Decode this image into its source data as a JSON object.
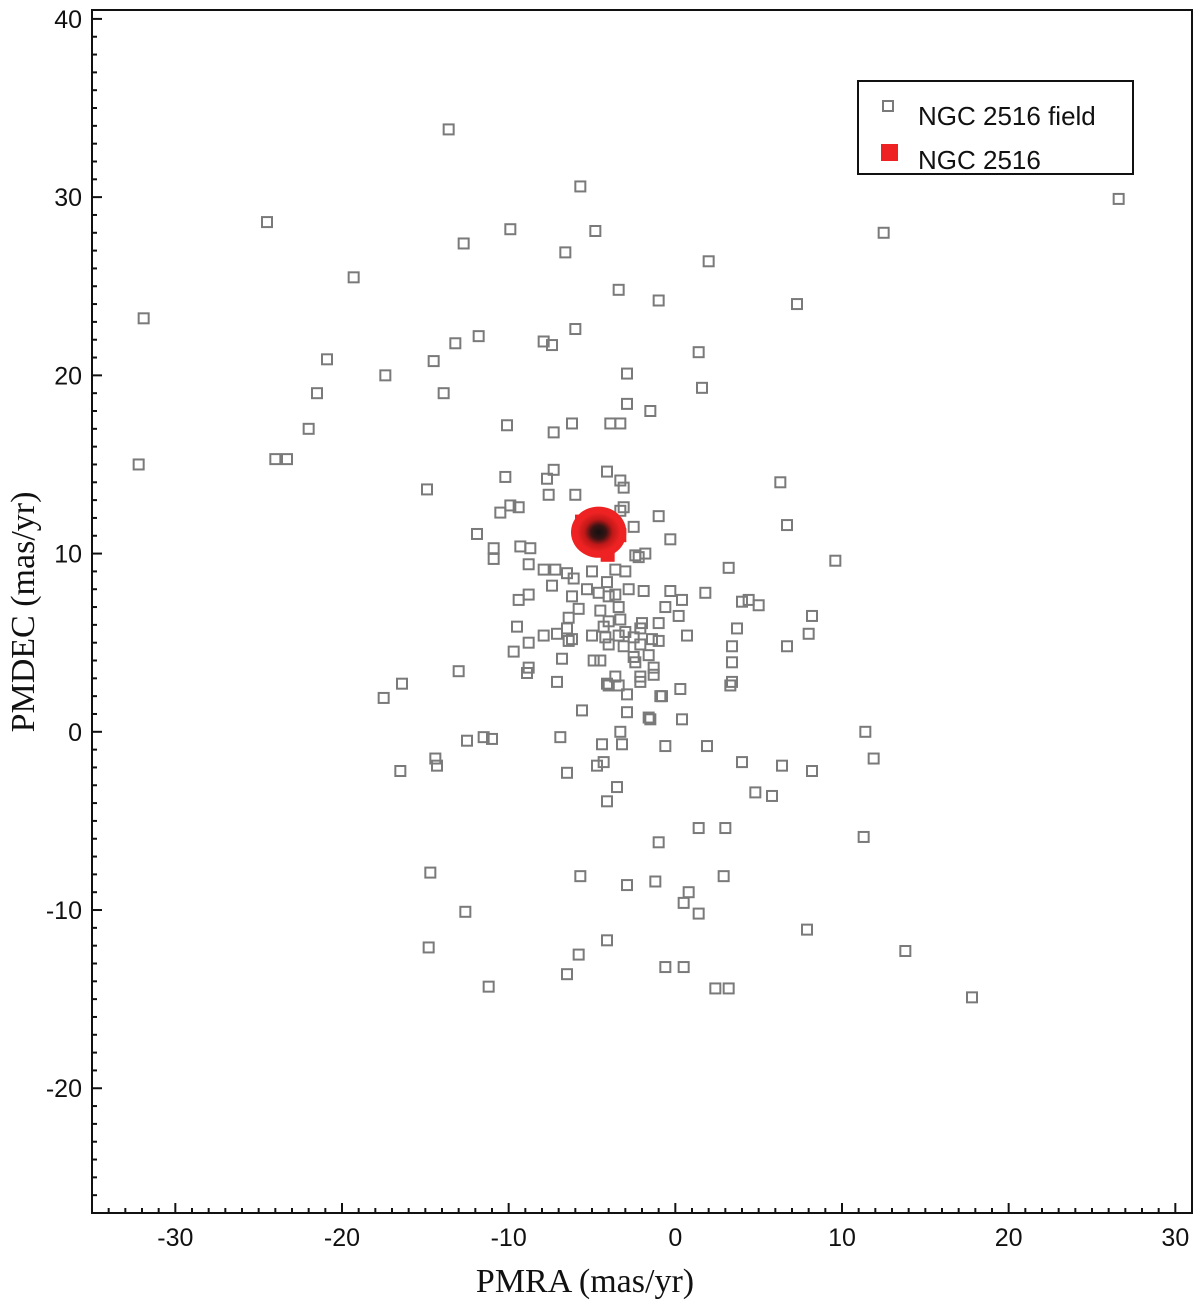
{
  "chart_data": {
    "type": "scatter",
    "xlabel": "PMRA (mas/yr)",
    "ylabel": "PMDEC (mas/yr)",
    "xlim": [
      -35,
      31
    ],
    "ylim": [
      -27,
      40.5
    ],
    "x_ticks": [
      -30,
      -20,
      -10,
      0,
      10,
      20,
      30
    ],
    "y_ticks": [
      -20,
      -10,
      0,
      10,
      20,
      30,
      40
    ],
    "x_tick_labels": [
      "-30",
      "-20",
      "-10",
      "0",
      "10",
      "20",
      "30"
    ],
    "y_tick_labels": [
      "-20",
      "-10",
      "0",
      "10",
      "20",
      "30",
      "40"
    ],
    "legend_placement": "top-right",
    "colors": {
      "field": "#7a7a7a",
      "cluster": "#ee2222",
      "cluster_core": "#1a1a1a"
    },
    "series": [
      {
        "name": "NGC 2516 field",
        "marker": "open-square",
        "points": [
          [
            -13.6,
            33.8
          ],
          [
            -5.7,
            30.6
          ],
          [
            -24.5,
            28.6
          ],
          [
            -9.9,
            28.2
          ],
          [
            -4.8,
            28.1
          ],
          [
            -12.7,
            27.4
          ],
          [
            -6.6,
            26.9
          ],
          [
            2.0,
            26.4
          ],
          [
            -3.4,
            24.8
          ],
          [
            -1.0,
            24.2
          ],
          [
            7.3,
            24.0
          ],
          [
            -19.3,
            25.5
          ],
          [
            -31.9,
            23.2
          ],
          [
            -6.0,
            22.6
          ],
          [
            -11.8,
            22.2
          ],
          [
            -13.2,
            21.8
          ],
          [
            -7.9,
            21.9
          ],
          [
            -7.4,
            21.7
          ],
          [
            1.4,
            21.3
          ],
          [
            -20.9,
            20.9
          ],
          [
            -14.5,
            20.8
          ],
          [
            -17.4,
            20.0
          ],
          [
            -2.9,
            20.1
          ],
          [
            -21.5,
            19.0
          ],
          [
            -13.9,
            19.0
          ],
          [
            1.6,
            19.3
          ],
          [
            -2.9,
            18.4
          ],
          [
            -1.5,
            18.0
          ],
          [
            -22.0,
            17.0
          ],
          [
            -10.1,
            17.2
          ],
          [
            -6.2,
            17.3
          ],
          [
            -3.9,
            17.3
          ],
          [
            -3.3,
            17.3
          ],
          [
            -7.3,
            16.8
          ],
          [
            -32.2,
            15.0
          ],
          [
            -24.0,
            15.3
          ],
          [
            -23.3,
            15.3
          ],
          [
            -10.2,
            14.3
          ],
          [
            -7.7,
            14.2
          ],
          [
            -7.3,
            14.7
          ],
          [
            -4.1,
            14.6
          ],
          [
            -3.3,
            14.1
          ],
          [
            -14.9,
            13.6
          ],
          [
            -7.6,
            13.3
          ],
          [
            -6.0,
            13.3
          ],
          [
            -3.1,
            13.7
          ],
          [
            6.3,
            14.0
          ],
          [
            -10.5,
            12.3
          ],
          [
            -9.4,
            12.6
          ],
          [
            -9.9,
            12.7
          ],
          [
            -3.1,
            12.6
          ],
          [
            -3.3,
            12.4
          ],
          [
            -1.0,
            12.1
          ],
          [
            -11.9,
            11.1
          ],
          [
            -2.5,
            11.5
          ],
          [
            6.7,
            11.6
          ],
          [
            -10.9,
            10.3
          ],
          [
            -9.3,
            10.4
          ],
          [
            -8.7,
            10.3
          ],
          [
            -0.3,
            10.8
          ],
          [
            -10.9,
            9.7
          ],
          [
            -2.4,
            9.9
          ],
          [
            -1.8,
            10.0
          ],
          [
            -2.2,
            9.8
          ],
          [
            9.6,
            9.6
          ],
          [
            -8.8,
            9.4
          ],
          [
            -7.9,
            9.1
          ],
          [
            -7.2,
            9.1
          ],
          [
            -6.5,
            8.9
          ],
          [
            -5.0,
            9.0
          ],
          [
            -3.6,
            9.1
          ],
          [
            -3.0,
            9.0
          ],
          [
            -6.1,
            8.6
          ],
          [
            -4.1,
            8.4
          ],
          [
            -7.4,
            8.2
          ],
          [
            -5.3,
            8.0
          ],
          [
            -4.6,
            7.8
          ],
          [
            -2.8,
            8.0
          ],
          [
            -1.9,
            7.9
          ],
          [
            -0.3,
            7.9
          ],
          [
            -3.6,
            7.7
          ],
          [
            -4.0,
            7.6
          ],
          [
            -6.2,
            7.6
          ],
          [
            -8.8,
            7.7
          ],
          [
            3.2,
            9.2
          ],
          [
            1.8,
            7.8
          ],
          [
            4.0,
            7.3
          ],
          [
            4.4,
            7.4
          ],
          [
            5.0,
            7.1
          ],
          [
            -9.4,
            7.4
          ],
          [
            -5.8,
            6.9
          ],
          [
            -4.5,
            6.8
          ],
          [
            -3.4,
            7.0
          ],
          [
            -0.6,
            7.0
          ],
          [
            0.4,
            7.4
          ],
          [
            8.2,
            6.5
          ],
          [
            -6.4,
            6.4
          ],
          [
            -4.0,
            6.2
          ],
          [
            -3.3,
            6.3
          ],
          [
            -2.0,
            6.1
          ],
          [
            -1.0,
            6.1
          ],
          [
            0.2,
            6.5
          ],
          [
            -9.5,
            5.9
          ],
          [
            -6.5,
            5.8
          ],
          [
            -4.3,
            5.9
          ],
          [
            -3.0,
            5.6
          ],
          [
            -2.1,
            5.8
          ],
          [
            3.7,
            5.8
          ],
          [
            -7.9,
            5.4
          ],
          [
            -7.1,
            5.5
          ],
          [
            -6.2,
            5.2
          ],
          [
            -5.0,
            5.4
          ],
          [
            -4.2,
            5.3
          ],
          [
            -3.4,
            5.4
          ],
          [
            -2.5,
            5.3
          ],
          [
            -1.4,
            5.2
          ],
          [
            0.7,
            5.4
          ],
          [
            8.0,
            5.5
          ],
          [
            -8.8,
            5.0
          ],
          [
            -6.4,
            5.1
          ],
          [
            -4.0,
            4.9
          ],
          [
            -3.1,
            4.8
          ],
          [
            -2.1,
            4.9
          ],
          [
            -1.0,
            5.1
          ],
          [
            3.4,
            4.8
          ],
          [
            6.7,
            4.8
          ],
          [
            -9.7,
            4.5
          ],
          [
            -6.8,
            4.1
          ],
          [
            -4.9,
            4.0
          ],
          [
            -4.5,
            4.0
          ],
          [
            -2.5,
            4.2
          ],
          [
            -1.6,
            4.3
          ],
          [
            -2.4,
            3.9
          ],
          [
            -1.3,
            3.6
          ],
          [
            3.4,
            3.9
          ],
          [
            -8.8,
            3.6
          ],
          [
            -13.0,
            3.4
          ],
          [
            -8.9,
            3.3
          ],
          [
            -3.6,
            3.1
          ],
          [
            -2.1,
            3.1
          ],
          [
            -1.3,
            3.2
          ],
          [
            -7.1,
            2.8
          ],
          [
            -4.1,
            2.7
          ],
          [
            -3.4,
            2.6
          ],
          [
            -2.1,
            2.8
          ],
          [
            3.3,
            2.6
          ],
          [
            3.4,
            2.8
          ],
          [
            -16.4,
            2.7
          ],
          [
            -17.5,
            1.9
          ],
          [
            -4.0,
            2.6
          ],
          [
            -2.9,
            2.1
          ],
          [
            -0.9,
            2.0
          ],
          [
            -0.8,
            2.0
          ],
          [
            0.3,
            2.4
          ],
          [
            -5.6,
            1.2
          ],
          [
            -2.9,
            1.1
          ],
          [
            -1.6,
            0.8
          ],
          [
            -1.5,
            0.7
          ],
          [
            0.4,
            0.7
          ],
          [
            -3.3,
            0.0
          ],
          [
            11.4,
            0.0
          ],
          [
            -6.9,
            -0.3
          ],
          [
            -11.5,
            -0.3
          ],
          [
            -11.0,
            -0.4
          ],
          [
            -12.5,
            -0.5
          ],
          [
            -4.4,
            -0.7
          ],
          [
            -3.2,
            -0.7
          ],
          [
            -0.6,
            -0.8
          ],
          [
            1.9,
            -0.8
          ],
          [
            -14.4,
            -1.5
          ],
          [
            -14.3,
            -1.9
          ],
          [
            -4.3,
            -1.7
          ],
          [
            -4.7,
            -1.9
          ],
          [
            -6.5,
            -2.3
          ],
          [
            -16.5,
            -2.2
          ],
          [
            4.0,
            -1.7
          ],
          [
            6.4,
            -1.9
          ],
          [
            8.2,
            -2.2
          ],
          [
            11.9,
            -1.5
          ],
          [
            -3.5,
            -3.1
          ],
          [
            4.8,
            -3.4
          ],
          [
            5.8,
            -3.6
          ],
          [
            -4.1,
            -3.9
          ],
          [
            1.4,
            -5.4
          ],
          [
            3.0,
            -5.4
          ],
          [
            -1.0,
            -6.2
          ],
          [
            11.3,
            -5.9
          ],
          [
            -14.7,
            -7.9
          ],
          [
            -5.7,
            -8.1
          ],
          [
            -2.9,
            -8.6
          ],
          [
            -1.2,
            -8.4
          ],
          [
            2.9,
            -8.1
          ],
          [
            0.8,
            -9.0
          ],
          [
            0.5,
            -9.6
          ],
          [
            1.4,
            -10.2
          ],
          [
            -12.6,
            -10.1
          ],
          [
            7.9,
            -11.1
          ],
          [
            -14.8,
            -12.1
          ],
          [
            -4.1,
            -11.7
          ],
          [
            -5.8,
            -12.5
          ],
          [
            13.8,
            -12.3
          ],
          [
            -6.5,
            -13.6
          ],
          [
            -0.6,
            -13.2
          ],
          [
            0.5,
            -13.2
          ],
          [
            -11.2,
            -14.3
          ],
          [
            2.4,
            -14.4
          ],
          [
            3.2,
            -14.4
          ],
          [
            17.8,
            -14.9
          ],
          [
            12.5,
            28.0
          ],
          [
            26.6,
            29.9
          ]
        ]
      },
      {
        "name": "NGC 2516",
        "marker": "filled-square",
        "center": [
          -4.6,
          11.2
        ],
        "spread": [
          1.3,
          1.1
        ]
      }
    ]
  }
}
